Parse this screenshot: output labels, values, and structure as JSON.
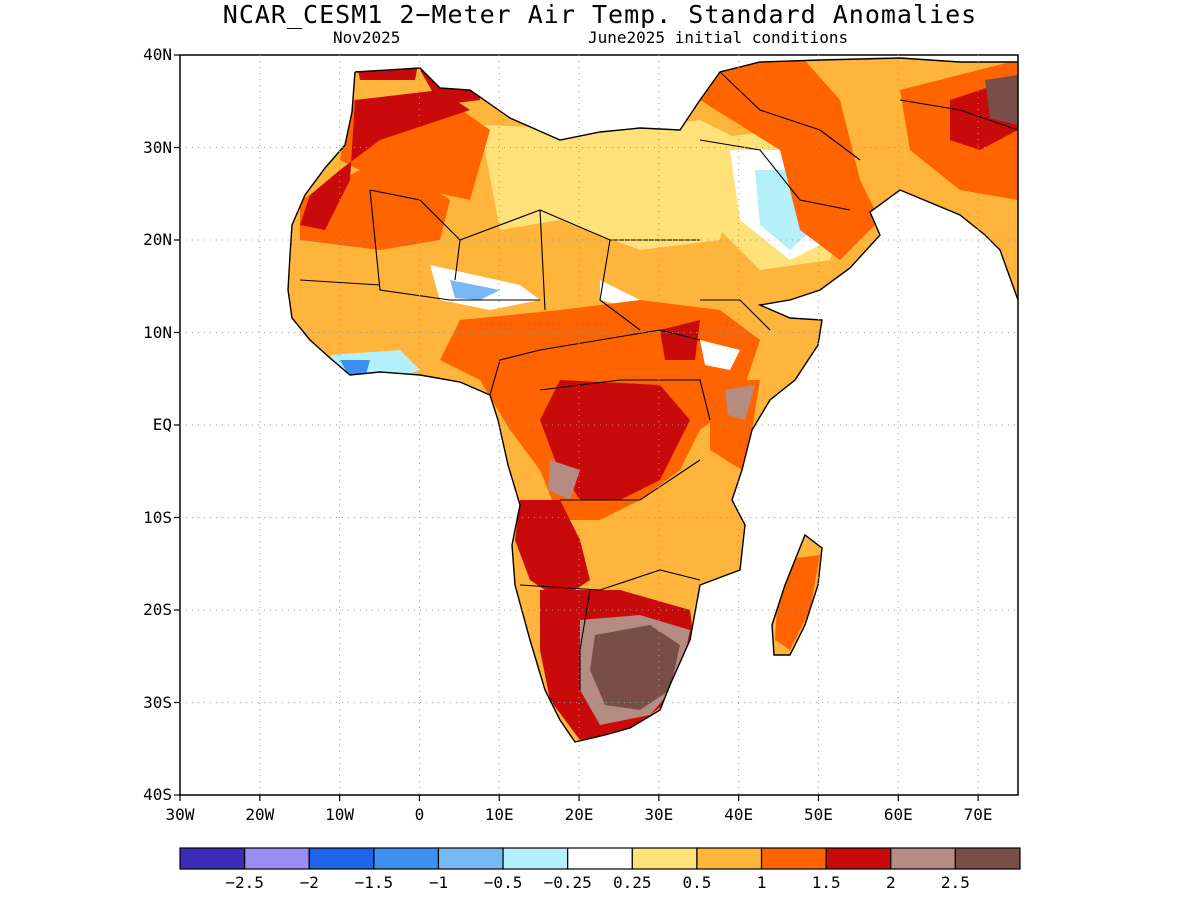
{
  "title": "NCAR_CESM1 2−Meter Air Temp. Standard Anomalies",
  "subtitle_left": "Nov2025",
  "subtitle_right": "June2025 initial conditions",
  "map": {
    "lat_labels": [
      "40N",
      "30N",
      "20N",
      "10N",
      "EQ",
      "10S",
      "20S",
      "30S",
      "40S"
    ],
    "lon_labels": [
      "30W",
      "20W",
      "10W",
      "0",
      "10E",
      "20E",
      "30E",
      "40E",
      "50E",
      "60E",
      "70E"
    ],
    "lon_range": [
      -30,
      75
    ],
    "lat_range": [
      -40,
      40
    ],
    "grid": "dotted",
    "region": "Africa and Middle East"
  },
  "colorbar": {
    "colors": [
      "#3b2bb5",
      "#9b8cf5",
      "#1e64e6",
      "#3c91f0",
      "#78b9f5",
      "#b4f0fa",
      "#ffffff",
      "#ffe17a",
      "#ffb43c",
      "#ff6400",
      "#c80a0a",
      "#b48c82",
      "#784e46"
    ],
    "labels": [
      "−2.5",
      "−2",
      "−1.5",
      "−1",
      "−0.5",
      "−0.25",
      "0.25",
      "0.5",
      "1",
      "1.5",
      "2",
      "2.5"
    ]
  }
}
